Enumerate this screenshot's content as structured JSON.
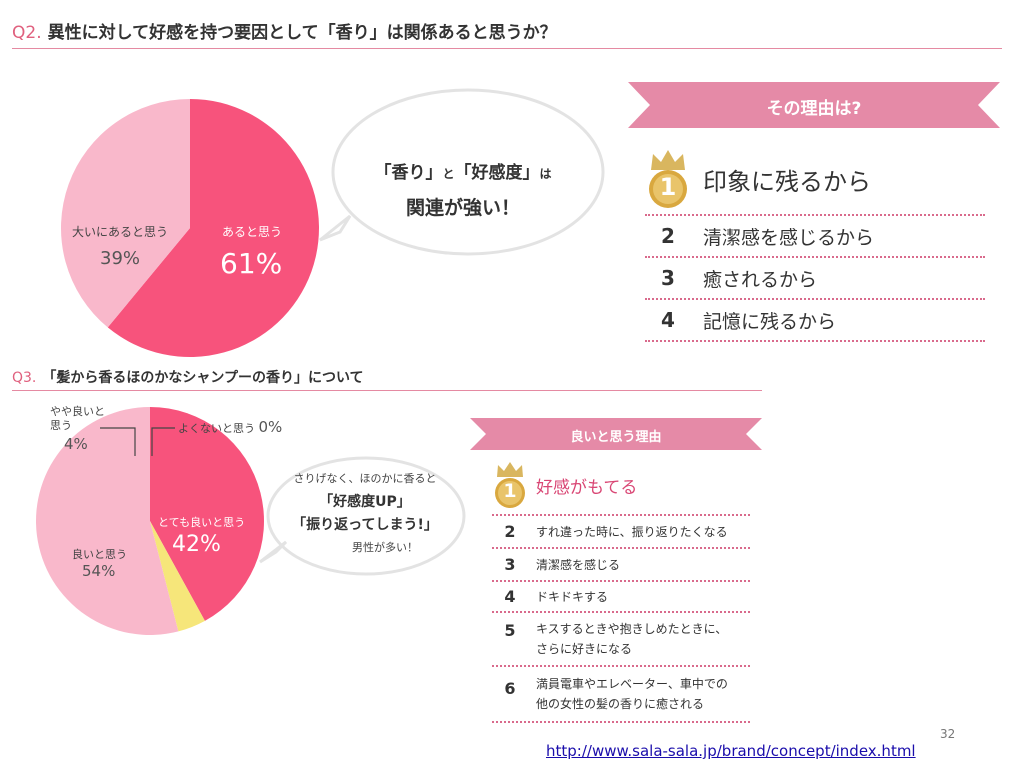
{
  "q2": {
    "number": "Q2.",
    "title": "異性に対して好感を持つ要因として「香り」は関係あると思うか？",
    "bubble_line1a": "「香り」",
    "bubble_line1b": "と",
    "bubble_line1c": "「好感度」",
    "bubble_line1d": "は",
    "bubble_line2": "関連が強い！",
    "banner": "その理由は?",
    "reasons": [
      {
        "rank": "1",
        "text": "印象に残るから"
      },
      {
        "rank": "2",
        "text": "清潔感を感じるから"
      },
      {
        "rank": "3",
        "text": "癒されるから"
      },
      {
        "rank": "4",
        "text": "記憶に残るから"
      }
    ]
  },
  "q3": {
    "number": "Q3.",
    "title": "「髪から香るほのかなシャンプーの香り」について",
    "bubble_line1": "さりげなく、ほのかに香ると",
    "bubble_line2": "「好感度UP」",
    "bubble_line3": "「振り返ってしまう!」",
    "bubble_line4": "男性が多い！",
    "banner": "良いと思う理由",
    "reasons": [
      {
        "rank": "1",
        "text": "好感がもてる"
      },
      {
        "rank": "2",
        "text": "すれ違った時に、振り返りたくなる"
      },
      {
        "rank": "3",
        "text": "清潔感を感じる"
      },
      {
        "rank": "4",
        "text": "ドキドキする"
      },
      {
        "rank": "5",
        "text": "キスするときや抱きしめたときに、",
        "text2": "さらに好きになる"
      },
      {
        "rank": "6",
        "text": "満員電車やエレベーター、車中での",
        "text2": "他の女性の髪の香りに癒される"
      }
    ]
  },
  "chart_data": [
    {
      "type": "pie",
      "categories": [
        "あると思う",
        "大いにあると思う"
      ],
      "values": [
        61,
        39
      ],
      "value_labels": [
        "61%",
        "39%"
      ],
      "colors": [
        "#f7537c",
        "#f9b8cb"
      ]
    },
    {
      "type": "pie",
      "categories": [
        "とても良いと思う",
        "よくないと思う",
        "やや良いと思う",
        "良いと思う"
      ],
      "values": [
        42,
        0,
        4,
        54
      ],
      "value_labels": [
        "42%",
        "0%",
        "4%",
        "54%"
      ],
      "colors": [
        "#f7537c",
        "#cccccc",
        "#f6e67a",
        "#f9b8cb"
      ]
    }
  ],
  "q3_labels": {
    "slight_line1": "やや良いと",
    "slight_line2": "思う"
  },
  "footer": {
    "page_number": "32",
    "source_url": "http://www.sala-sala.jp/brand/concept/index.html"
  }
}
